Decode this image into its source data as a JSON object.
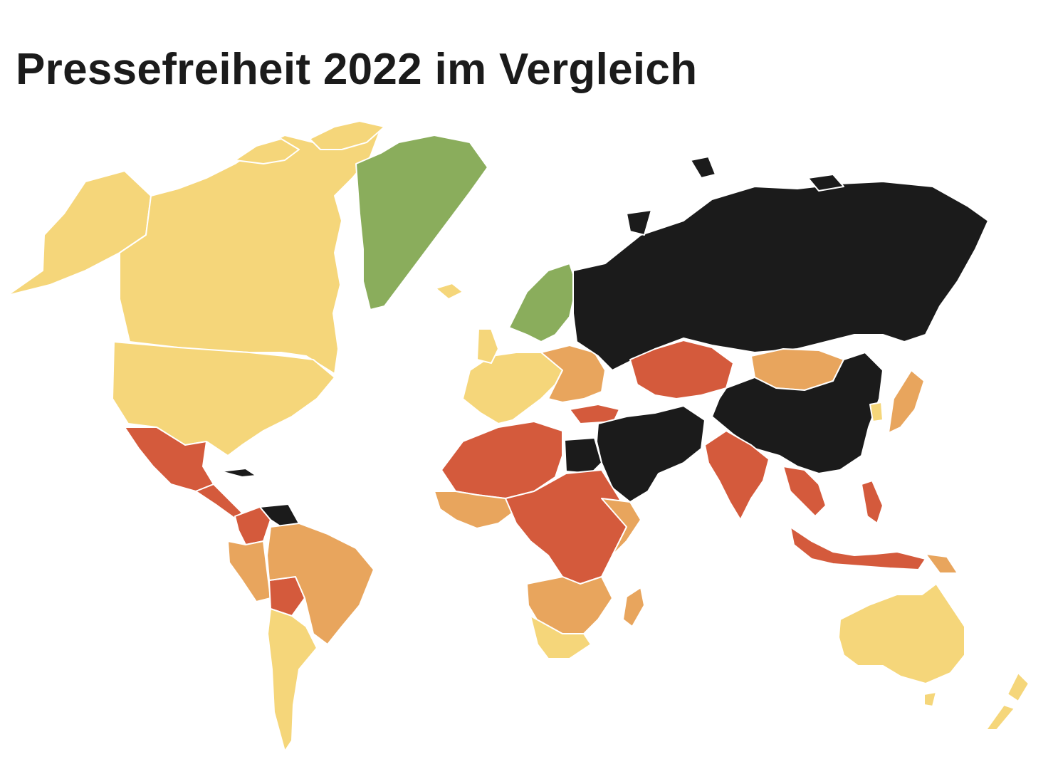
{
  "title": "Pressefreiheit 2022 im Vergleich",
  "colors": {
    "good": "#8aad5c",
    "satisfactory": "#f5d67a",
    "problematic": "#e8a55d",
    "difficult": "#d45a3c",
    "very_serious": "#1b1b1b"
  }
}
